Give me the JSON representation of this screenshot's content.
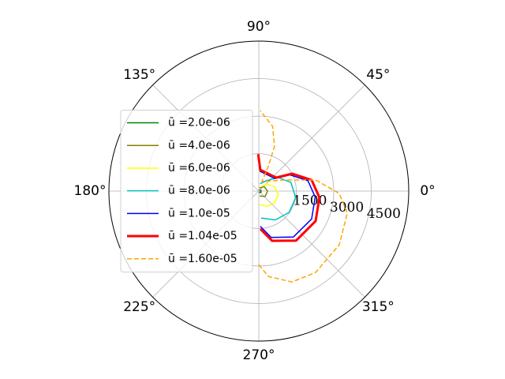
{
  "chart_data": {
    "type": "polar",
    "rlim": [
      0,
      6000
    ],
    "rticks": [
      1500,
      3000,
      4500
    ],
    "thetaticks": [
      {
        "value": 0,
        "label": "0°"
      },
      {
        "value": 45,
        "label": "45°"
      },
      {
        "value": 90,
        "label": "90°"
      },
      {
        "value": 135,
        "label": "135°"
      },
      {
        "value": 180,
        "label": "180°"
      },
      {
        "value": 225,
        "label": "225°"
      },
      {
        "value": 270,
        "label": "270°"
      },
      {
        "value": 315,
        "label": "315°"
      }
    ],
    "grid": true,
    "legend": "center left",
    "series": [
      {
        "name": "ū =2.0e-06",
        "color": "#008000",
        "linewidth": 1.5,
        "theta": [
          -80,
          -30,
          20,
          70
        ],
        "r": [
          60,
          100,
          90,
          40
        ]
      },
      {
        "name": "ū =4.0e-06",
        "color": "#808000",
        "linewidth": 1.5,
        "theta": [
          -80,
          -40,
          0,
          40,
          80
        ],
        "r": [
          200,
          330,
          350,
          280,
          120
        ]
      },
      {
        "name": "ū =6.0e-06",
        "color": "#ffff00",
        "linewidth": 1.5,
        "theta": [
          -85,
          -60,
          -35,
          -10,
          15,
          40,
          65
        ],
        "r": [
          550,
          700,
          790,
          790,
          660,
          440,
          200
        ]
      },
      {
        "name": "ū =8.0e-06",
        "color": "#00bfbf",
        "linewidth": 1.5,
        "theta": [
          -85,
          -60,
          -35,
          -10,
          15,
          35,
          55,
          80
        ],
        "r": [
          1080,
          1330,
          1480,
          1500,
          1330,
          950,
          500,
          300
        ]
      },
      {
        "name": "ū =1.0e-05",
        "color": "#0000ff",
        "linewidth": 1.5,
        "theta": [
          -87.6,
          -75,
          -53,
          -27.8,
          -6,
          11.8,
          27.6,
          37.7,
          86,
          91
        ],
        "r": [
          1410,
          1920,
          2300,
          2390,
          2270,
          2010,
          1400,
          820,
          790,
          1330
        ]
      },
      {
        "name": "ū =1.04e-05",
        "color": "#ff0000",
        "linewidth": 3,
        "theta": [
          -87.6,
          -75,
          -53,
          -27.8,
          -6,
          11.8,
          27.6,
          37.7,
          86,
          91
        ],
        "r": [
          1520,
          2060,
          2480,
          2570,
          2440,
          2160,
          1500,
          880,
          850,
          1480
        ]
      },
      {
        "name": "ū =1.60e-05",
        "color": "#ffa500",
        "linewidth": 1.5,
        "linestyle": "dashed",
        "theta": [
          -90,
          -83.7,
          -70,
          -55,
          -33.7,
          -14,
          -1.7,
          11,
          23.6,
          72,
          69,
          70.7,
          78,
          89
        ],
        "r": [
          2940,
          3430,
          3870,
          3970,
          3870,
          3650,
          3220,
          2320,
          1100,
          400,
          1080,
          1900,
          2650,
          3220
        ]
      }
    ]
  }
}
